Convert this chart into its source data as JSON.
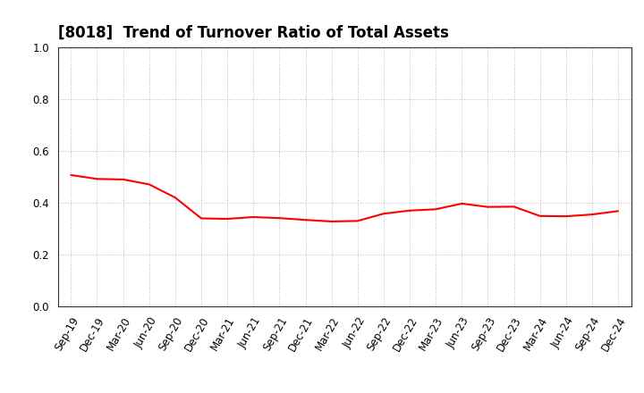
{
  "title": "[8018]  Trend of Turnover Ratio of Total Assets",
  "labels": [
    "Sep-19",
    "Dec-19",
    "Mar-20",
    "Jun-20",
    "Sep-20",
    "Dec-20",
    "Mar-21",
    "Jun-21",
    "Sep-21",
    "Dec-21",
    "Mar-22",
    "Jun-22",
    "Sep-22",
    "Dec-22",
    "Mar-23",
    "Jun-23",
    "Sep-23",
    "Dec-23",
    "Mar-24",
    "Jun-24",
    "Sep-24",
    "Dec-24"
  ],
  "values": [
    0.507,
    0.492,
    0.49,
    0.471,
    0.42,
    0.34,
    0.338,
    0.345,
    0.341,
    0.334,
    0.328,
    0.33,
    0.358,
    0.37,
    0.375,
    0.397,
    0.384,
    0.385,
    0.349,
    0.348,
    0.355,
    0.368
  ],
  "line_color": "#FF0000",
  "line_width": 1.5,
  "background_color": "#FFFFFF",
  "grid_color": "#BBBBBB",
  "ylim": [
    0.0,
    1.0
  ],
  "yticks": [
    0.0,
    0.2,
    0.4,
    0.6,
    0.8,
    1.0
  ],
  "title_fontsize": 12,
  "tick_fontsize": 8.5
}
